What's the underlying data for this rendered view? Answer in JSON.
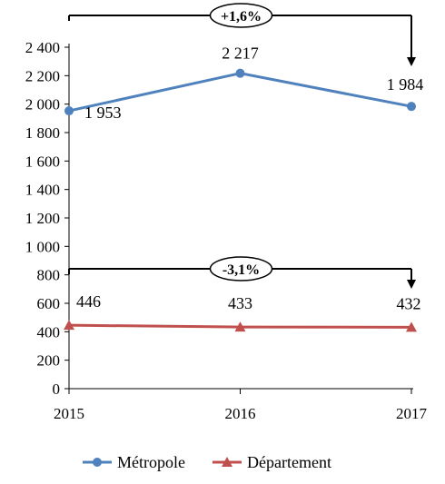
{
  "chart_data": {
    "type": "line",
    "x": [
      "2015",
      "2016",
      "2017"
    ],
    "ylim": [
      0,
      2400
    ],
    "yticks": [
      0,
      200,
      400,
      600,
      800,
      1000,
      1200,
      1400,
      1600,
      1800,
      2000,
      2200,
      2400
    ],
    "ytick_labels": [
      "0",
      "200",
      "400",
      "600",
      "800",
      "1 000",
      "1 200",
      "1 400",
      "1 600",
      "1 800",
      "2 000",
      "2 200",
      "2 400"
    ],
    "grid": false,
    "legend": "bottom",
    "series": [
      {
        "name": "Métropole",
        "values": [
          1953,
          2217,
          1984
        ],
        "labels": [
          "1 953",
          "2 217",
          "1 984"
        ],
        "color": "#4f81bd",
        "marker": "circle",
        "change_label": "+1,6%"
      },
      {
        "name": "Département",
        "values": [
          446,
          433,
          432
        ],
        "labels": [
          "446",
          "433",
          "432"
        ],
        "color": "#c0504d",
        "marker": "triangle",
        "change_label": "-3,1%"
      }
    ]
  }
}
